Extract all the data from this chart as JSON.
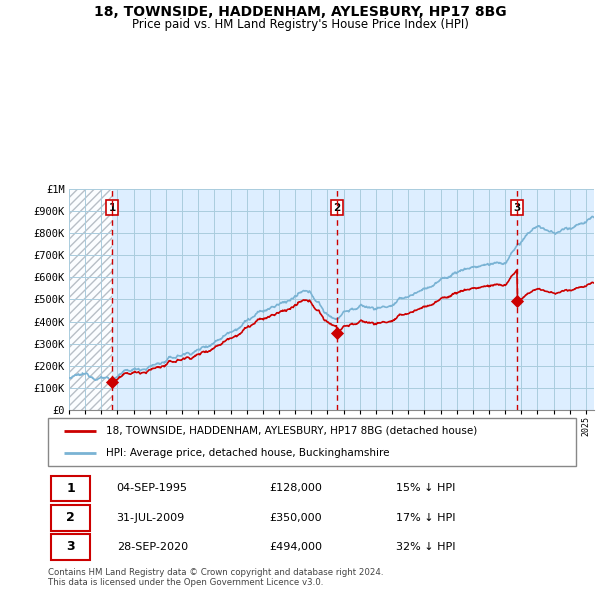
{
  "title": "18, TOWNSIDE, HADDENHAM, AYLESBURY, HP17 8BG",
  "subtitle": "Price paid vs. HM Land Registry's House Price Index (HPI)",
  "legend_label_red": "18, TOWNSIDE, HADDENHAM, AYLESBURY, HP17 8BG (detached house)",
  "legend_label_blue": "HPI: Average price, detached house, Buckinghamshire",
  "footer1": "Contains HM Land Registry data © Crown copyright and database right 2024.",
  "footer2": "This data is licensed under the Open Government Licence v3.0.",
  "transactions": [
    {
      "num": 1,
      "date": "04-SEP-1995",
      "price": "£128,000",
      "hpi": "15% ↓ HPI"
    },
    {
      "num": 2,
      "date": "31-JUL-2009",
      "price": "£350,000",
      "hpi": "17% ↓ HPI"
    },
    {
      "num": 3,
      "date": "28-SEP-2020",
      "price": "£494,000",
      "hpi": "32% ↓ HPI"
    }
  ],
  "sale_dates": [
    1995.67,
    2009.58,
    2020.75
  ],
  "sale_prices": [
    128000,
    350000,
    494000
  ],
  "ylim": [
    0,
    1000000
  ],
  "yticks": [
    0,
    100000,
    200000,
    300000,
    400000,
    500000,
    600000,
    700000,
    800000,
    900000,
    1000000
  ],
  "ytick_labels": [
    "£0",
    "£100K",
    "£200K",
    "£300K",
    "£400K",
    "£500K",
    "£600K",
    "£700K",
    "£800K",
    "£900K",
    "£1M"
  ],
  "hpi_color": "#7ab3d4",
  "price_color": "#cc0000",
  "dashed_color": "#cc0000",
  "chart_bg_color": "#ddeeff",
  "hatch_color": "#c8c8c8",
  "grid_color": "#aaccdd",
  "xmin": 1993.0,
  "xmax": 2025.5
}
